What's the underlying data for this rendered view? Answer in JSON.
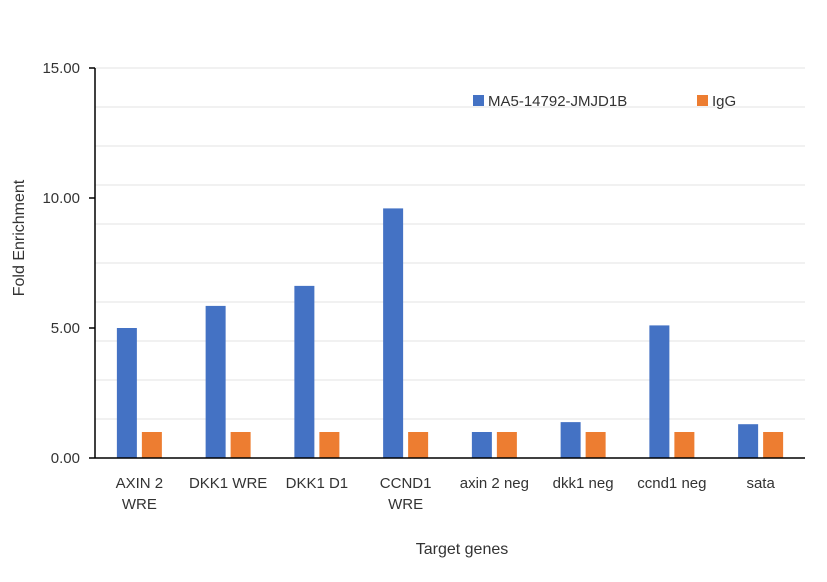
{
  "chart_data": {
    "type": "bar",
    "title": "",
    "xlabel": "Target genes",
    "ylabel": "Fold Enrichment",
    "ylim": [
      0,
      15
    ],
    "y_ticks": [
      "0.00",
      "5.00",
      "10.00",
      "15.00"
    ],
    "y_tick_values": [
      0,
      5,
      10,
      15
    ],
    "minor_grid_step": 1.5,
    "grid": true,
    "legend_position": "top-right",
    "categories": [
      [
        "AXIN 2",
        "WRE"
      ],
      [
        "DKK1 WRE"
      ],
      [
        "DKK1 D1"
      ],
      [
        "CCND1",
        "WRE"
      ],
      [
        "axin 2 neg"
      ],
      [
        "dkk1 neg"
      ],
      [
        "ccnd1 neg"
      ],
      [
        "sata"
      ]
    ],
    "series": [
      {
        "name": "MA5-14792-JMJD1B",
        "color": "#4472C4",
        "values": [
          5.0,
          5.85,
          6.62,
          9.6,
          1.0,
          1.38,
          5.1,
          1.3
        ]
      },
      {
        "name": "IgG",
        "color": "#ED7D31",
        "values": [
          1.0,
          1.0,
          1.0,
          1.0,
          1.0,
          1.0,
          1.0,
          1.0
        ]
      }
    ]
  }
}
